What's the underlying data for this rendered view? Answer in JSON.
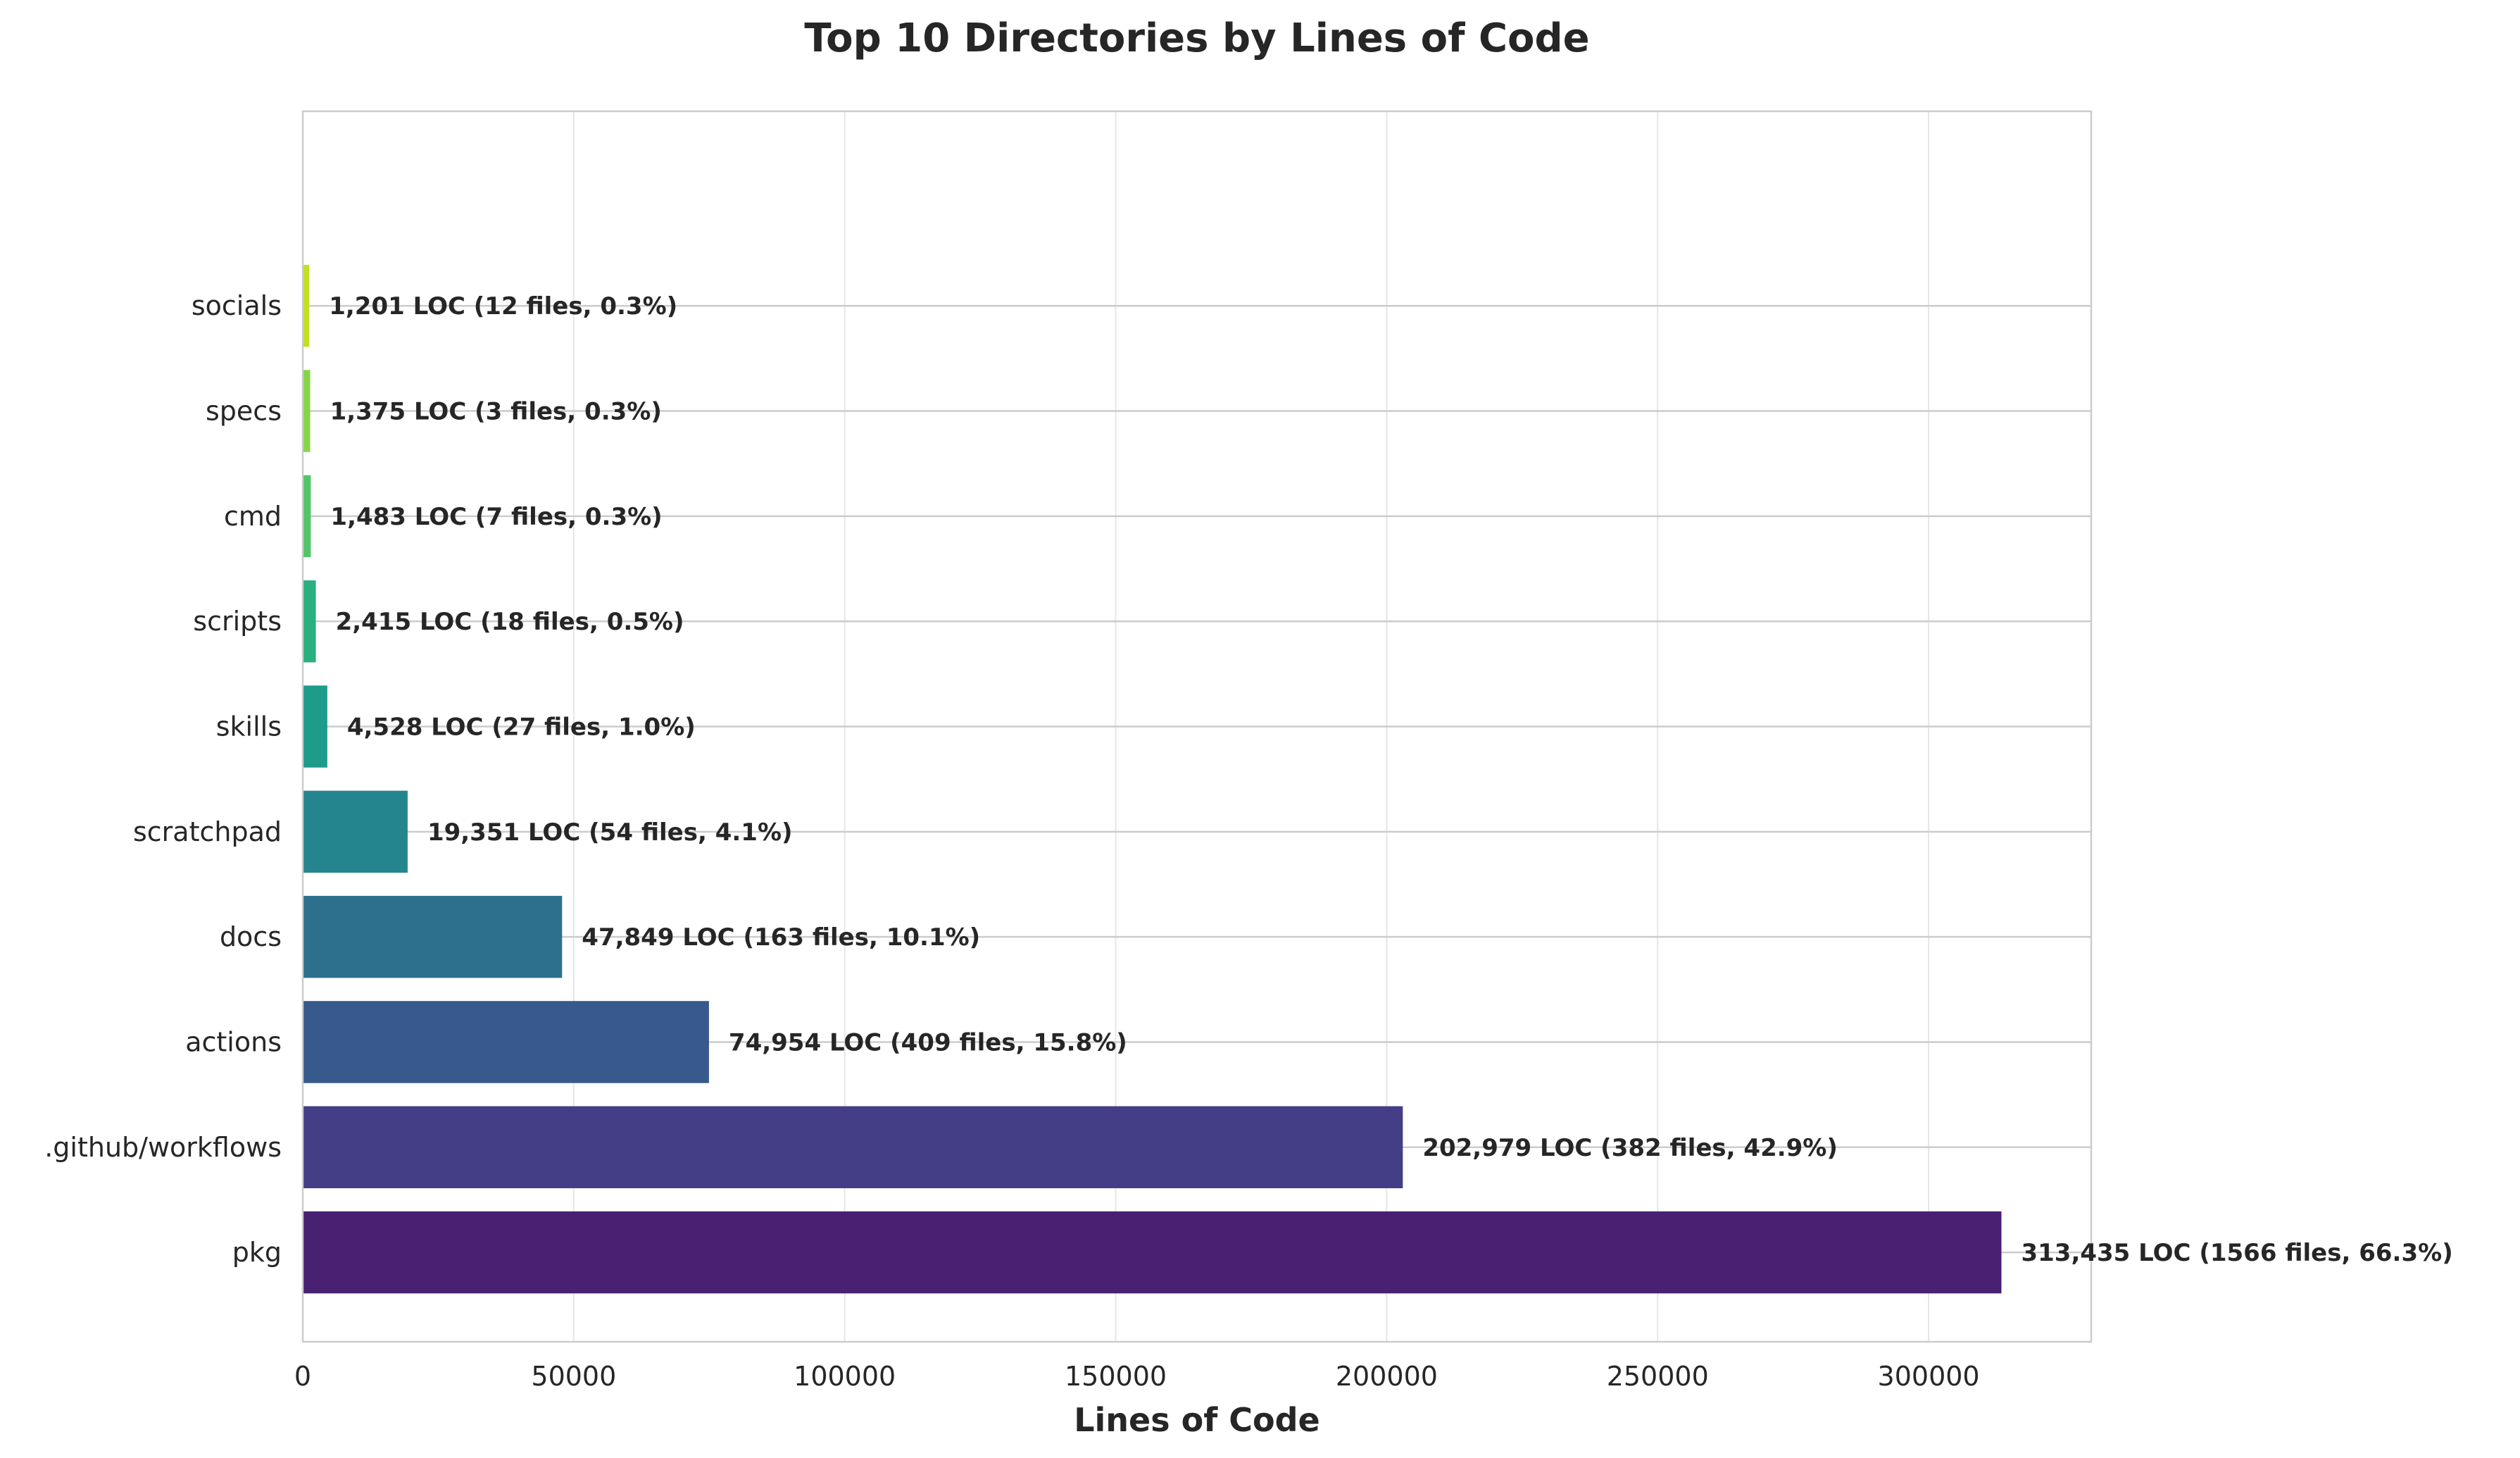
{
  "chart_data": {
    "type": "bar",
    "orientation": "horizontal",
    "title": "Top 10 Directories by Lines of Code",
    "xlabel": "Lines of Code",
    "ylabel": "",
    "xlim": [
      0,
      330000
    ],
    "xticks": [
      0,
      50000,
      100000,
      150000,
      200000,
      250000,
      300000
    ],
    "xtick_labels": [
      "0",
      "50000",
      "100000",
      "150000",
      "200000",
      "250000",
      "300000"
    ],
    "grid": true,
    "categories": [
      "pkg",
      ".github/workflows",
      "actions",
      "docs",
      "scratchpad",
      "skills",
      "scripts",
      "cmd",
      "specs",
      "socials"
    ],
    "values": [
      313435,
      202979,
      74954,
      47849,
      19351,
      4528,
      2415,
      1483,
      1375,
      1201
    ],
    "data_labels": [
      "313,435 LOC (1566 files, 66.3%)",
      "202,979 LOC (382 files, 42.9%)",
      "74,954 LOC (409 files, 15.8%)",
      "47,849 LOC (163 files, 10.1%)",
      "19,351 LOC (54 files, 4.1%)",
      "4,528 LOC (27 files, 1.0%)",
      "2,415 LOC (18 files, 0.5%)",
      "1,483 LOC (7 files, 0.3%)",
      "1,375 LOC (3 files, 0.3%)",
      "1,201 LOC (12 files, 0.3%)"
    ],
    "colors": [
      "#482173",
      "#433e85",
      "#38598c",
      "#2d708e",
      "#25858e",
      "#1e9b8a",
      "#2ab07f",
      "#52c569",
      "#86d549",
      "#c2df23"
    ]
  }
}
